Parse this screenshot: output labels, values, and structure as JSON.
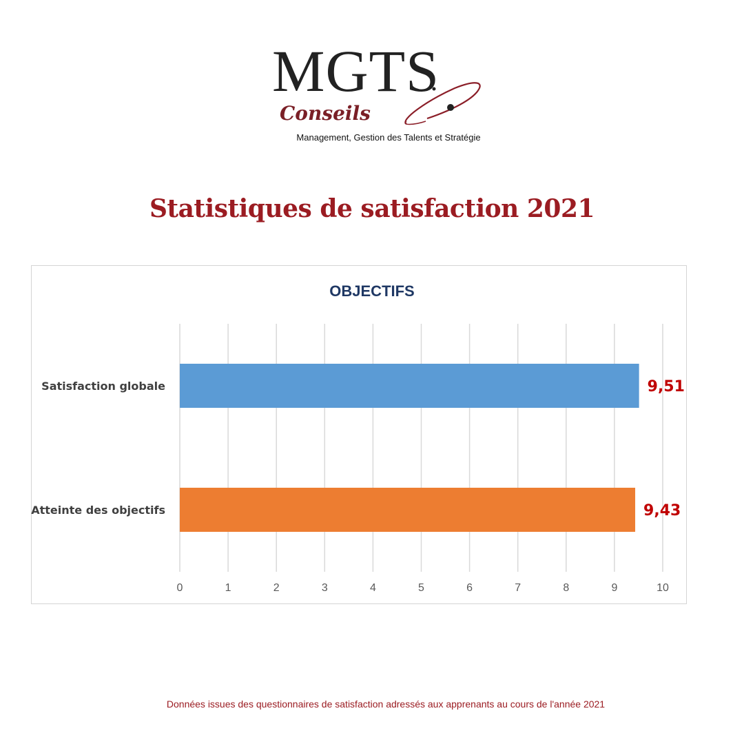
{
  "logo": {
    "name": "MGTS",
    "sub": "Conseils",
    "tagline": "Management, Gestion des Talents et Stratégie"
  },
  "page_title": "Statistiques de satisfaction 2021",
  "footer_note": "Données issues des questionnaires de satisfaction adressés aux apprenants au cours de l'année 2021",
  "colors": {
    "title": "#9b1c22",
    "chart_title": "#1f3864",
    "value_labels": "#c00000",
    "gridlines": "#d9d9d9"
  },
  "chart_data": {
    "type": "bar",
    "orientation": "horizontal",
    "title": "OBJECTIFS",
    "categories": [
      "Satisfaction globale",
      "Atteinte des objectifs"
    ],
    "values": [
      9.51,
      9.43
    ],
    "value_labels": [
      "9,51",
      "9,43"
    ],
    "bar_colors": [
      "#5b9bd5",
      "#ed7d31"
    ],
    "xlim": [
      0,
      10
    ],
    "xticks": [
      0,
      1,
      2,
      3,
      4,
      5,
      6,
      7,
      8,
      9,
      10
    ],
    "xtick_labels": [
      "0",
      "1",
      "2",
      "3",
      "4",
      "5",
      "6",
      "7",
      "8",
      "9",
      "10"
    ],
    "grid": true,
    "legend": "none"
  }
}
